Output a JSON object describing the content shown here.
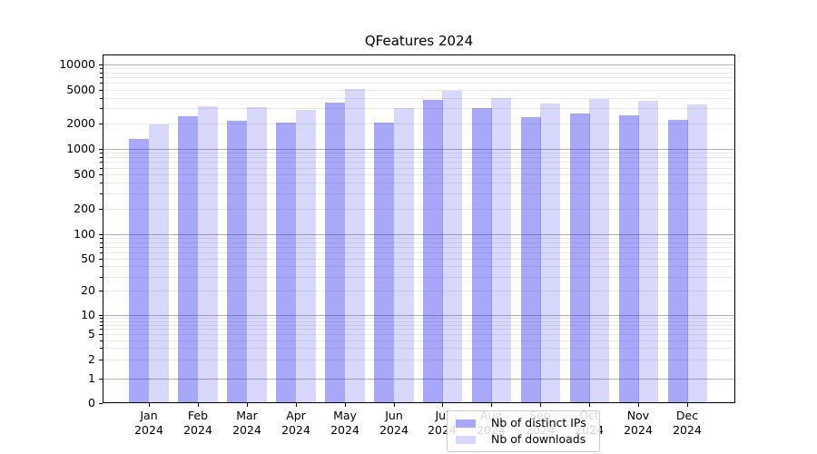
{
  "title": "QFeatures 2024",
  "chart_data": {
    "type": "bar",
    "title": "QFeatures 2024",
    "categories": [
      "Jan",
      "Feb",
      "Mar",
      "Apr",
      "May",
      "Jun",
      "Jul",
      "Aug",
      "Sep",
      "Oct",
      "Nov",
      "Dec"
    ],
    "category_year": "2024",
    "series": [
      {
        "name": "Nb of distinct IPs",
        "values": [
          1300,
          2400,
          2150,
          2050,
          3550,
          2050,
          3800,
          3000,
          2350,
          2600,
          2500,
          2200
        ]
      },
      {
        "name": "Nb of downloads",
        "values": [
          1950,
          3200,
          3100,
          2900,
          5100,
          3050,
          4800,
          4000,
          3400,
          3900,
          3650,
          3350
        ]
      }
    ],
    "yscale": "symlog",
    "ylim": [
      0,
      12800
    ],
    "y_ticks": [
      {
        "value": 10000,
        "label": "10000"
      },
      {
        "value": 5000,
        "label": "5000"
      },
      {
        "value": 2000,
        "label": "2000"
      },
      {
        "value": 1000,
        "label": "1000"
      },
      {
        "value": 500,
        "label": "500"
      },
      {
        "value": 200,
        "label": "200"
      },
      {
        "value": 100,
        "label": "100"
      },
      {
        "value": 50,
        "label": "50"
      },
      {
        "value": 20,
        "label": "20"
      },
      {
        "value": 10,
        "label": "10"
      },
      {
        "value": 5,
        "label": "5"
      },
      {
        "value": 2,
        "label": "2"
      },
      {
        "value": 1,
        "label": "1"
      },
      {
        "value": 0,
        "label": "0"
      }
    ],
    "grid": true,
    "legend_position": "lower-center-inside"
  },
  "colors": {
    "bar_distinct_ips": "rgba(32,32,240,0.39)",
    "bar_downloads": "rgba(32,32,240,0.175)",
    "major_gridline": "#b0b0b0",
    "minor_gridline": "#e8e8e8",
    "axis": "#000000",
    "text": "#000000",
    "legend_border": "#cccccc",
    "legend_background": "rgba(255,255,255,0.85)"
  }
}
